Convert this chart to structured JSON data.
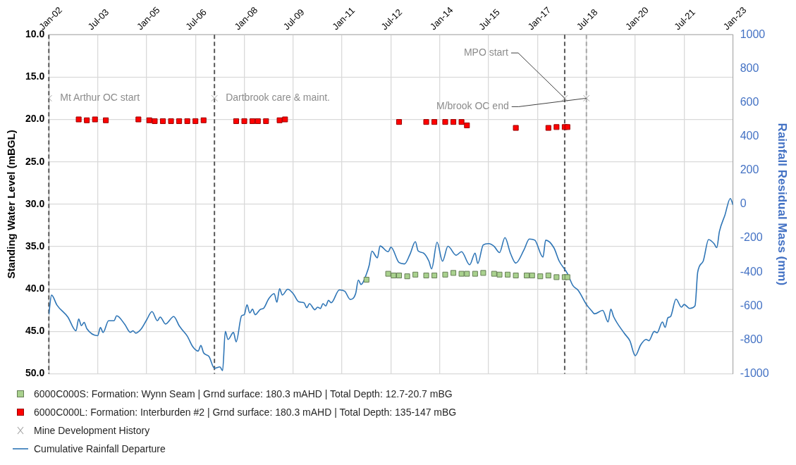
{
  "chart_data": {
    "type": "scatter",
    "ylabel": "Standing Water Level (mBGL)",
    "y2label": "Rainfall Residual Mass (mm)",
    "xlim": [
      "2002-01",
      "2023-01"
    ],
    "xticks": [
      {
        "value": "2002-01",
        "label": "Jan-02"
      },
      {
        "value": "2003-07",
        "label": "Jul-03"
      },
      {
        "value": "2005-01",
        "label": "Jan-05"
      },
      {
        "value": "2006-07",
        "label": "Jul-06"
      },
      {
        "value": "2008-01",
        "label": "Jan-08"
      },
      {
        "value": "2009-07",
        "label": "Jul-09"
      },
      {
        "value": "2011-01",
        "label": "Jan-11"
      },
      {
        "value": "2012-07",
        "label": "Jul-12"
      },
      {
        "value": "2014-01",
        "label": "Jan-14"
      },
      {
        "value": "2015-07",
        "label": "Jul-15"
      },
      {
        "value": "2017-01",
        "label": "Jan-17"
      },
      {
        "value": "2018-07",
        "label": "Jul-18"
      },
      {
        "value": "2020-01",
        "label": "Jan-20"
      },
      {
        "value": "2021-07",
        "label": "Jul-21"
      },
      {
        "value": "2023-01",
        "label": "Jan-23"
      }
    ],
    "ylim": [
      50,
      10
    ],
    "yticks": [
      {
        "value": 10,
        "label": "10.0"
      },
      {
        "value": 15,
        "label": "15.0"
      },
      {
        "value": 20,
        "label": "20.0"
      },
      {
        "value": 25,
        "label": "25.0"
      },
      {
        "value": 30,
        "label": "30.0"
      },
      {
        "value": 35,
        "label": "35.0"
      },
      {
        "value": 40,
        "label": "40.0"
      },
      {
        "value": 45,
        "label": "45.0"
      },
      {
        "value": 50,
        "label": "50.0"
      }
    ],
    "y2lim": [
      -1000,
      1000
    ],
    "y2ticks": [
      -1000,
      -800,
      -600,
      -400,
      -200,
      0,
      200,
      400,
      600,
      800,
      1000
    ],
    "grid": true,
    "legend": "bottom",
    "ref_lines": [
      {
        "axis": "x",
        "value": "2002-01",
        "color": "#595959",
        "line_style": "dashed"
      },
      {
        "axis": "x",
        "value": "2007-02",
        "color": "#595959",
        "line_style": "dashed"
      },
      {
        "axis": "x",
        "value": "2017-11",
        "color": "#595959",
        "line_style": "dashed"
      },
      {
        "axis": "x",
        "value": "2018-07",
        "color": "#a6a6a6",
        "line_style": "dashed"
      }
    ],
    "annotations": [
      {
        "text": "Mt Arthur OC start",
        "x": "2002-01",
        "y": 17.5
      },
      {
        "text": "Dartbrook care & maint.",
        "x": "2007-02",
        "y": 17.5
      },
      {
        "text": "MPO start",
        "x": "2017-11",
        "y": 17.5
      },
      {
        "text": "M/brook OC end",
        "x": "2018-07",
        "y": 17.5
      }
    ],
    "series": [
      {
        "name": "6000C000S: Formation: Wynn Seam | Grnd surface: 180.3 mAHD | Total Depth: 12.7-20.7 mBG",
        "marker": "square",
        "color": "#a9d18e",
        "x": [
          "2011-10",
          "2012-06",
          "2012-08",
          "2012-10",
          "2013-01",
          "2013-04",
          "2013-08",
          "2013-11",
          "2014-03",
          "2014-06",
          "2014-09",
          "2014-11",
          "2015-02",
          "2015-05",
          "2015-09",
          "2015-11",
          "2016-02",
          "2016-05",
          "2016-09",
          "2016-11",
          "2017-02",
          "2017-05",
          "2017-08",
          "2017-11",
          "2017-12"
        ],
        "values": [
          38.9,
          38.2,
          38.4,
          38.4,
          38.5,
          38.3,
          38.4,
          38.4,
          38.3,
          38.1,
          38.2,
          38.2,
          38.2,
          38.1,
          38.2,
          38.3,
          38.3,
          38.4,
          38.4,
          38.4,
          38.5,
          38.4,
          38.6,
          38.6,
          38.6
        ]
      },
      {
        "name": "6000C000L: Formation: Interburden #2 | Grnd surface: 180.3 mAHD | Total Depth: 135-147 mBG",
        "marker": "square",
        "color": "#ff0000",
        "x": [
          "2002-12",
          "2003-03",
          "2003-06",
          "2003-10",
          "2004-10",
          "2005-02",
          "2005-04",
          "2005-07",
          "2005-10",
          "2006-01",
          "2006-04",
          "2006-07",
          "2006-10",
          "2007-10",
          "2008-01",
          "2008-04",
          "2008-06",
          "2008-09",
          "2009-02",
          "2009-04",
          "2012-10",
          "2013-08",
          "2013-11",
          "2014-03",
          "2014-06",
          "2014-09",
          "2014-11",
          "2016-05",
          "2017-05",
          "2017-08",
          "2017-11",
          "2017-12"
        ],
        "values": [
          20.0,
          20.1,
          20.0,
          20.1,
          20.0,
          20.1,
          20.2,
          20.2,
          20.2,
          20.2,
          20.2,
          20.2,
          20.1,
          20.2,
          20.2,
          20.2,
          20.2,
          20.2,
          20.1,
          20.0,
          20.3,
          20.3,
          20.3,
          20.3,
          20.3,
          20.3,
          20.7,
          21.0,
          21.0,
          20.9,
          20.9,
          20.9
        ]
      },
      {
        "name": "Mine Development History",
        "marker": "cross",
        "color": "#a6a6a6",
        "x": [
          "2002-01",
          "2007-02",
          "2017-11",
          "2018-07"
        ],
        "values": [
          17.5,
          17.5,
          17.5,
          17.5
        ]
      },
      {
        "name": "Cumulative Rainfall Departure",
        "type": "line",
        "marker": "none",
        "axis": "y2",
        "color": "#2e75b6",
        "x": [
          "2002-01",
          "2002-02",
          "2002-04",
          "2002-08",
          "2002-11",
          "2002-12",
          "2003-01",
          "2003-02",
          "2003-03",
          "2003-07",
          "2003-08",
          "2003-09",
          "2003-11",
          "2004-01",
          "2004-02",
          "2004-05",
          "2004-07",
          "2004-08",
          "2004-09",
          "2004-11",
          "2005-01",
          "2005-03",
          "2005-05",
          "2005-06",
          "2005-08",
          "2005-11",
          "2006-01",
          "2006-02",
          "2006-04",
          "2006-06",
          "2006-08",
          "2006-09",
          "2006-10",
          "2006-12",
          "2007-02",
          "2007-04",
          "2007-05",
          "2007-06",
          "2007-07",
          "2007-09",
          "2007-10",
          "2007-12",
          "2008-01",
          "2008-02",
          "2008-03",
          "2008-04",
          "2008-05",
          "2008-07",
          "2008-08",
          "2008-10",
          "2008-12",
          "2009-01",
          "2009-02",
          "2009-03",
          "2009-05",
          "2009-07",
          "2009-09",
          "2009-11",
          "2009-12",
          "2010-01",
          "2010-03",
          "2010-04",
          "2010-05",
          "2010-06",
          "2010-07",
          "2010-08",
          "2010-09",
          "2010-12",
          "2011-02",
          "2011-04",
          "2011-06",
          "2011-07",
          "2011-08",
          "2011-10",
          "2011-11",
          "2011-12",
          "2012-02",
          "2012-03",
          "2012-06",
          "2012-07",
          "2012-10",
          "2012-12",
          "2013-02",
          "2013-04",
          "2013-05",
          "2013-07",
          "2013-09",
          "2013-10",
          "2013-12",
          "2014-02",
          "2014-04",
          "2014-07",
          "2014-09",
          "2014-12",
          "2015-02",
          "2015-03",
          "2015-05",
          "2015-07",
          "2015-09",
          "2015-11",
          "2016-01",
          "2016-03",
          "2016-05",
          "2016-08",
          "2016-10",
          "2016-12",
          "2017-03",
          "2017-04",
          "2017-07",
          "2017-09",
          "2017-12",
          "2018-02",
          "2018-04",
          "2018-07",
          "2018-09",
          "2018-10",
          "2019-01",
          "2019-03",
          "2019-04",
          "2019-05",
          "2019-09",
          "2019-11",
          "2020-01",
          "2020-03",
          "2020-05",
          "2020-06",
          "2020-08",
          "2020-09",
          "2020-11",
          "2020-12",
          "2021-01",
          "2021-02",
          "2021-04",
          "2021-06",
          "2021-07",
          "2021-09",
          "2021-11",
          "2021-12",
          "2022-02",
          "2022-04",
          "2022-06",
          "2022-07",
          "2022-08",
          "2022-10",
          "2022-12",
          "2023-01"
        ],
        "values": [
          -650,
          -536,
          -595,
          -665,
          -746,
          -677,
          -716,
          -697,
          -734,
          -775,
          -727,
          -756,
          -687,
          -687,
          -658,
          -709,
          -755,
          -746,
          -760,
          -736,
          -683,
          -633,
          -687,
          -665,
          -706,
          -662,
          -716,
          -738,
          -778,
          -840,
          -866,
          -833,
          -876,
          -898,
          -968,
          -959,
          -981,
          -750,
          -797,
          -756,
          -811,
          -658,
          -651,
          -593,
          -641,
          -619,
          -651,
          -619,
          -615,
          -557,
          -527,
          -578,
          -498,
          -535,
          -501,
          -527,
          -575,
          -581,
          -610,
          -586,
          -622,
          -607,
          -615,
          -586,
          -600,
          -567,
          -581,
          -505,
          -513,
          -561,
          -527,
          -447,
          -473,
          -411,
          -360,
          -277,
          -316,
          -246,
          -280,
          -253,
          -344,
          -352,
          -296,
          -221,
          -275,
          -288,
          -336,
          -381,
          -224,
          -336,
          -248,
          -301,
          -280,
          -357,
          -288,
          -349,
          -240,
          -232,
          -248,
          -285,
          -197,
          -288,
          -347,
          -269,
          -205,
          -212,
          -312,
          -212,
          -256,
          -336,
          -408,
          -479,
          -508,
          -591,
          -630,
          -646,
          -626,
          -694,
          -619,
          -662,
          -762,
          -805,
          -893,
          -829,
          -797,
          -805,
          -750,
          -758,
          -694,
          -726,
          -670,
          -662,
          -559,
          -607,
          -591,
          -614,
          -599,
          -400,
          -336,
          -208,
          -232,
          -256,
          -160,
          -65,
          34,
          -4
        ]
      }
    ]
  }
}
